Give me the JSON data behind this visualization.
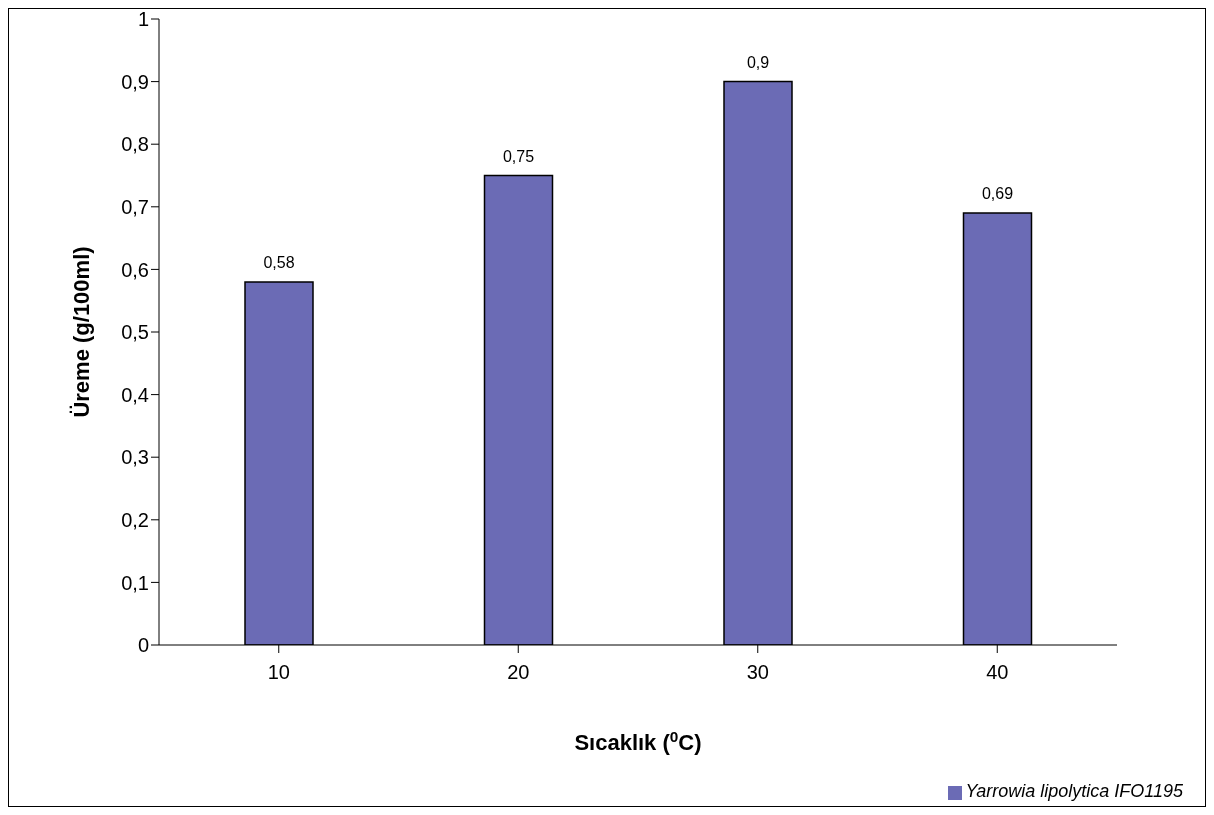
{
  "chart_data": {
    "type": "bar",
    "xlabel": "Sıcaklık ($^{0}$C)",
    "ylabel": "Üreme (g/100ml)",
    "categories": [
      "10",
      "20",
      "30",
      "40"
    ],
    "series": [
      {
        "name": "Yarrowia lipolytica IFO1195",
        "color": "#6b6bb5",
        "values": [
          0.58,
          0.75,
          0.9,
          0.69
        ],
        "value_labels": [
          "0,58",
          "0,75",
          "0,9",
          "0,69"
        ]
      }
    ],
    "ylim": [
      0,
      1
    ],
    "yticks": [
      0,
      {
        "value": 0.1,
        "label": "0,1"
      },
      {
        "value": 0.2,
        "label": "0,2"
      },
      {
        "value": 0.3,
        "label": "0,3"
      },
      {
        "value": 0.4,
        "label": "0,4"
      },
      {
        "value": 0.5,
        "label": "0,5"
      },
      {
        "value": 0.6,
        "label": "0,6"
      },
      {
        "value": 0.7,
        "label": "0,7"
      },
      {
        "value": 0.8,
        "label": "0,8"
      },
      {
        "value": 0.9,
        "label": "0,9"
      },
      1
    ],
    "grid": false,
    "legend": "bottom right"
  }
}
